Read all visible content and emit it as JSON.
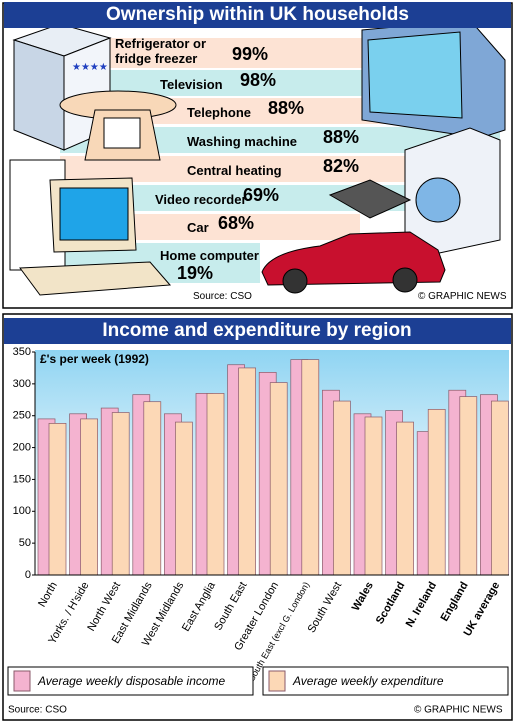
{
  "ownership": {
    "title": "Ownership within UK households",
    "items": [
      {
        "label": "Refrigerator or fridge freezer",
        "value": "99%"
      },
      {
        "label": "Television",
        "value": "98%"
      },
      {
        "label": "Telephone",
        "value": "88%"
      },
      {
        "label": "Washing machine",
        "value": "88%"
      },
      {
        "label": "Central heating",
        "value": "82%"
      },
      {
        "label": "Video recorder",
        "value": "69%"
      },
      {
        "label": "Car",
        "value": "68%"
      },
      {
        "label": "Home computer",
        "value": "19%"
      }
    ],
    "source": "Source: CSO",
    "credit": "© GRAPHIC NEWS"
  },
  "chart_data": {
    "type": "bar",
    "title": "Income and expenditure by region",
    "subtitle": "£'s per week (1992)",
    "categories": [
      "North",
      "Yorks. / H'side",
      "North West",
      "East Midlands",
      "West Midlands",
      "East Anglia",
      "South East",
      "Greater London",
      "South East (excl G. London)",
      "South West",
      "Wales",
      "Scotland",
      "N. Ireland",
      "England",
      "UK average"
    ],
    "series": [
      {
        "name": "Average weekly disposable income",
        "color": "#f4b3d0",
        "values": [
          245,
          253,
          262,
          283,
          253,
          285,
          330,
          318,
          338,
          290,
          253,
          258,
          225,
          290,
          283
        ]
      },
      {
        "name": "Average weekly expenditure",
        "color": "#fcd8b6",
        "values": [
          238,
          245,
          255,
          272,
          240,
          285,
          325,
          302,
          338,
          273,
          248,
          240,
          260,
          280,
          273
        ]
      }
    ],
    "ylim": [
      0,
      350
    ],
    "yticks": [
      0,
      50,
      100,
      150,
      200,
      250,
      300,
      350
    ],
    "grid": false,
    "source": "Source: CSO",
    "credit": "© GRAPHIC NEWS"
  }
}
